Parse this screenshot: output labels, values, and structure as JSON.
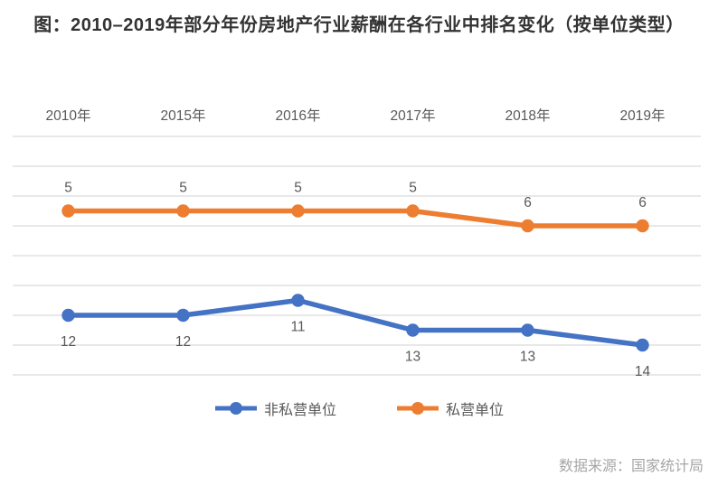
{
  "title": "图：2010–2019年部分年份房地产行业薪酬在各行业中排名变化（按单位类型）",
  "source_note": "数据来源：国家统计局",
  "colors": {
    "non_private_series": "#4472C4",
    "private_series": "#ED7D31",
    "gridline": "#D9D9D9",
    "axis_label": "#595959",
    "data_label": "#595959",
    "title_text": "#333333",
    "source_text": "#A6A6A6"
  },
  "chart_data": {
    "type": "line",
    "categories": [
      "2010年",
      "2015年",
      "2016年",
      "2017年",
      "2018年",
      "2019年"
    ],
    "series": [
      {
        "name": "非私营单位",
        "color": "#4472C4",
        "values": [
          12,
          12,
          11,
          13,
          13,
          14
        ],
        "label_position": "below"
      },
      {
        "name": "私营单位",
        "color": "#ED7D31",
        "values": [
          5,
          5,
          5,
          5,
          6,
          6
        ],
        "label_position": "above"
      }
    ],
    "title": "图：2010–2019年部分年份房地产行业薪酬在各行业中排名变化（按单位类型）",
    "xlabel": "",
    "ylabel": "",
    "y_axis": {
      "inverted": true,
      "min": 0,
      "max": 16,
      "gridline_step": 2,
      "tick_labels_visible": false
    },
    "x_axis_position": "top",
    "grid": true,
    "legend_position": "bottom",
    "legend_entries": [
      "非私营单位",
      "私营单位"
    ],
    "data_labels_visible": true
  }
}
